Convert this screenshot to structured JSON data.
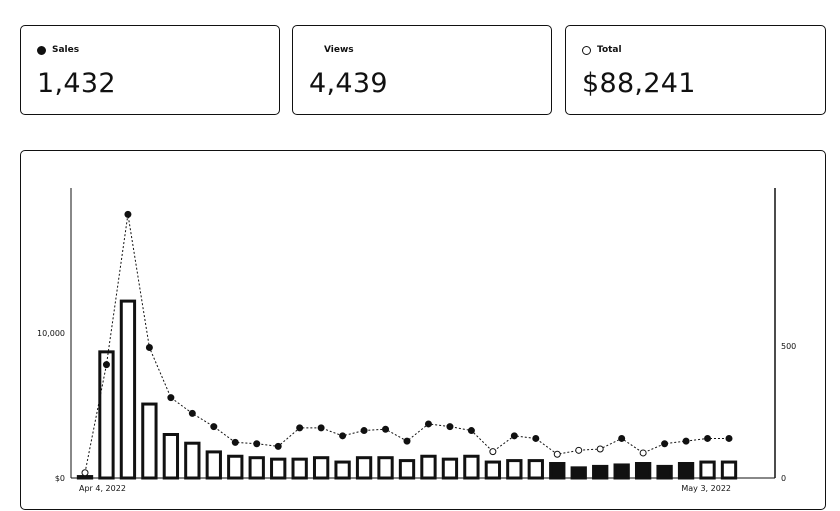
{
  "cards": [
    {
      "label": "Sales",
      "value": "1,432",
      "marker": "filled"
    },
    {
      "label": "Views",
      "value": "4,439",
      "marker": "none"
    },
    {
      "label": "Total",
      "value": "$88,241",
      "marker": "hollow"
    }
  ],
  "chart_data": {
    "type": "bar",
    "x_start_label": "Apr 4, 2022",
    "x_end_label": "May 3, 2022",
    "y_left": {
      "ticks": [
        "$0",
        "10,000"
      ],
      "tick_values": [
        0,
        10000
      ],
      "max": 20000
    },
    "y_right": {
      "ticks": [
        "0",
        "500"
      ],
      "tick_values": [
        0,
        500
      ],
      "max": 1100
    },
    "series": [
      {
        "kind": "bar",
        "axis": "left",
        "values": [
          100,
          8700,
          12200,
          5100,
          3000,
          2400,
          1800,
          1500,
          1400,
          1300,
          1300,
          1400,
          1100,
          1400,
          1400,
          1200,
          1500,
          1300,
          1500,
          1100,
          1200,
          1200,
          1000,
          700,
          800,
          900,
          1000,
          800,
          1000,
          1100,
          1100
        ]
      },
      {
        "kind": "line",
        "axis": "right",
        "marker": "filled",
        "values": [
          20,
          430,
          1000,
          495,
          305,
          245,
          195,
          135,
          130,
          120,
          190,
          190,
          160,
          180,
          185,
          140,
          205,
          195,
          180,
          100,
          160,
          150,
          90,
          105,
          110,
          150,
          95,
          130,
          140,
          150,
          150
        ]
      }
    ]
  }
}
